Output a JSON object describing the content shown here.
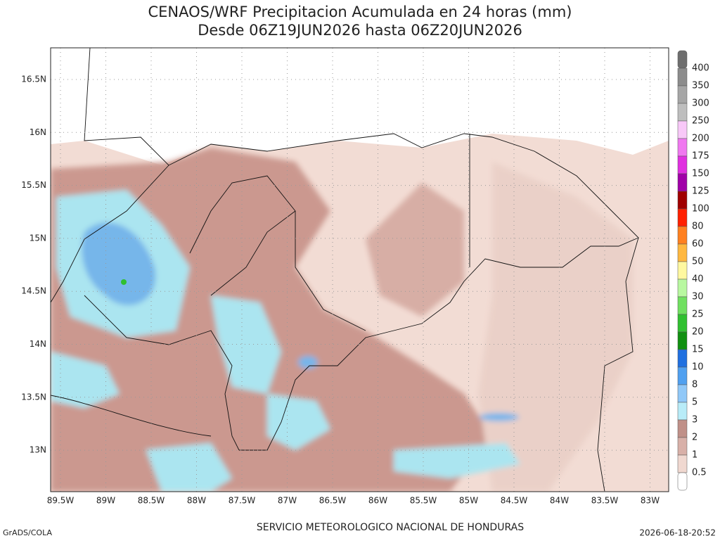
{
  "title": [
    "CENAOS/WRF Precipitacion Acumulada en 24 horas (mm)",
    "Desde 06Z19JUN2026 hasta 06Z20JUN2026"
  ],
  "lat_labels": [
    "16.5N",
    "16N",
    "15.5N",
    "15N",
    "14.5N",
    "14N",
    "13.5N",
    "13N"
  ],
  "lon_labels": [
    "89.5W",
    "89W",
    "88.5W",
    "88W",
    "87.5W",
    "87W",
    "86.5W",
    "86W",
    "85.5W",
    "85W",
    "84.5W",
    "84W",
    "83.5W",
    "83W"
  ],
  "colorbar": {
    "labels": [
      "400",
      "350",
      "300",
      "250",
      "200",
      "175",
      "150",
      "125",
      "100",
      "80",
      "60",
      "50",
      "40",
      "30",
      "25",
      "20",
      "15",
      "10",
      "8",
      "5",
      "3",
      "2",
      "1",
      "0.5"
    ],
    "colors": [
      "#6e6e6e",
      "#8c8c8c",
      "#a6a6a6",
      "#bebebe",
      "#f8c8f8",
      "#f078f0",
      "#e030e0",
      "#a000a8",
      "#a00000",
      "#ff2000",
      "#ff8020",
      "#ffb840",
      "#fff8a0",
      "#b8f8a0",
      "#70e060",
      "#30c030",
      "#109010",
      "#2070e0",
      "#50a0f0",
      "#90c8f8",
      "#b8ecf8",
      "#c09088",
      "#d8b0a8",
      "#f0d8d0",
      "#ffffff"
    ]
  },
  "footer": {
    "left": "GrADS/COLA",
    "center": "SERVICIO METEOROLOGICO NACIONAL DE HONDURAS",
    "right": "2026-06-18-20:52"
  }
}
